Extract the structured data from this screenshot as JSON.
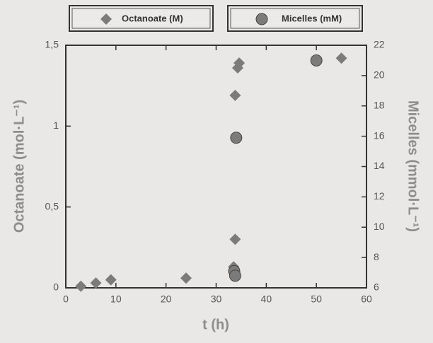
{
  "chart_data": {
    "type": "scatter",
    "xlabel": "t (h)",
    "ylabel": "Octanoate (mol·L⁻¹)",
    "y2label": "Micelles (mmol·L⁻¹)",
    "xlim": [
      0,
      60
    ],
    "xticks": [
      0,
      10,
      20,
      30,
      40,
      50,
      60
    ],
    "ylim": [
      0,
      1.5
    ],
    "yticks": [
      0,
      {
        "value": 0.5,
        "label": "0,5"
      },
      1,
      {
        "value": 1.5,
        "label": "1,5"
      }
    ],
    "y2lim": [
      6,
      22
    ],
    "y2ticks": [
      6,
      8,
      10,
      12,
      14,
      16,
      18,
      20,
      22
    ],
    "series": [
      {
        "name": "Octanoate (M)",
        "color": "#7b7b7b",
        "marker": "diamond",
        "x": [
          3,
          6,
          9,
          24,
          33.5,
          33.8,
          33.8,
          34.3,
          34.6,
          55
        ],
        "values": [
          0.01,
          0.03,
          0.05,
          0.06,
          0.13,
          0.3,
          1.19,
          1.36,
          1.39,
          1.42
        ]
      },
      {
        "name": "Micelles (mM)",
        "color": "#7b7b7b",
        "marker": "circle",
        "axis": "y2",
        "x": [
          33.6,
          33.8,
          34,
          50
        ],
        "values": [
          7.1,
          6.8,
          15.9,
          21
        ]
      }
    ]
  }
}
